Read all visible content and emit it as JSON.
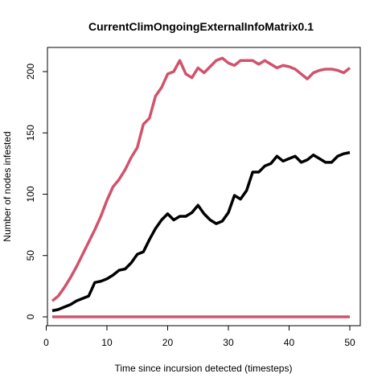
{
  "chart_data": {
    "type": "line",
    "title": "CurrentClimOngoingExternalInfoMatrix0.1",
    "xlabel": "Time since incursion detected (timesteps)",
    "ylabel": "Number of nodes infested",
    "xlim": [
      1,
      50
    ],
    "ylim": [
      0,
      211
    ],
    "x_ticks": [
      0,
      10,
      20,
      30,
      40,
      50
    ],
    "y_ticks": [
      0,
      50,
      100,
      150,
      200
    ],
    "grid": false,
    "legend": "none",
    "x": [
      1,
      2,
      3,
      4,
      5,
      6,
      7,
      8,
      9,
      10,
      11,
      12,
      13,
      14,
      15,
      16,
      17,
      18,
      19,
      20,
      21,
      22,
      23,
      24,
      25,
      26,
      27,
      28,
      29,
      30,
      31,
      32,
      33,
      34,
      35,
      36,
      37,
      38,
      39,
      40,
      41,
      42,
      43,
      44,
      45,
      46,
      47,
      48,
      49,
      50
    ],
    "series": [
      {
        "color": "#D1536B",
        "values": [
          13,
          17,
          24,
          32,
          41,
          51,
          61,
          71,
          82,
          95,
          106,
          112,
          120,
          130,
          138,
          157,
          162,
          180,
          187,
          198,
          200,
          209,
          198,
          195,
          203,
          199,
          204,
          209,
          211,
          207,
          205,
          209,
          209,
          209,
          206,
          209,
          206,
          203,
          205,
          204,
          202,
          198,
          194,
          199,
          201,
          202,
          202,
          201,
          199,
          203
        ]
      },
      {
        "color": "#000000",
        "values": [
          5,
          6,
          8,
          10,
          13,
          15,
          17,
          28,
          29,
          31,
          34,
          38,
          39,
          44,
          51,
          53,
          63,
          72,
          79,
          84,
          79,
          82,
          82,
          85,
          91,
          84,
          79,
          76,
          78,
          85,
          99,
          96,
          103,
          118,
          118,
          123,
          125,
          131,
          127,
          129,
          131,
          126,
          128,
          132,
          129,
          126,
          126,
          131,
          133,
          134
        ]
      },
      {
        "color": "#D1536B",
        "values": [
          0,
          0,
          0,
          0,
          0,
          0,
          0,
          0,
          0,
          0,
          0,
          0,
          0,
          0,
          0,
          0,
          0,
          0,
          0,
          0,
          0,
          0,
          0,
          0,
          0,
          0,
          0,
          0,
          0,
          0,
          0,
          0,
          0,
          0,
          0,
          0,
          0,
          0,
          0,
          0,
          0,
          0,
          0,
          0,
          0,
          0,
          0,
          0,
          0,
          0
        ]
      }
    ]
  }
}
